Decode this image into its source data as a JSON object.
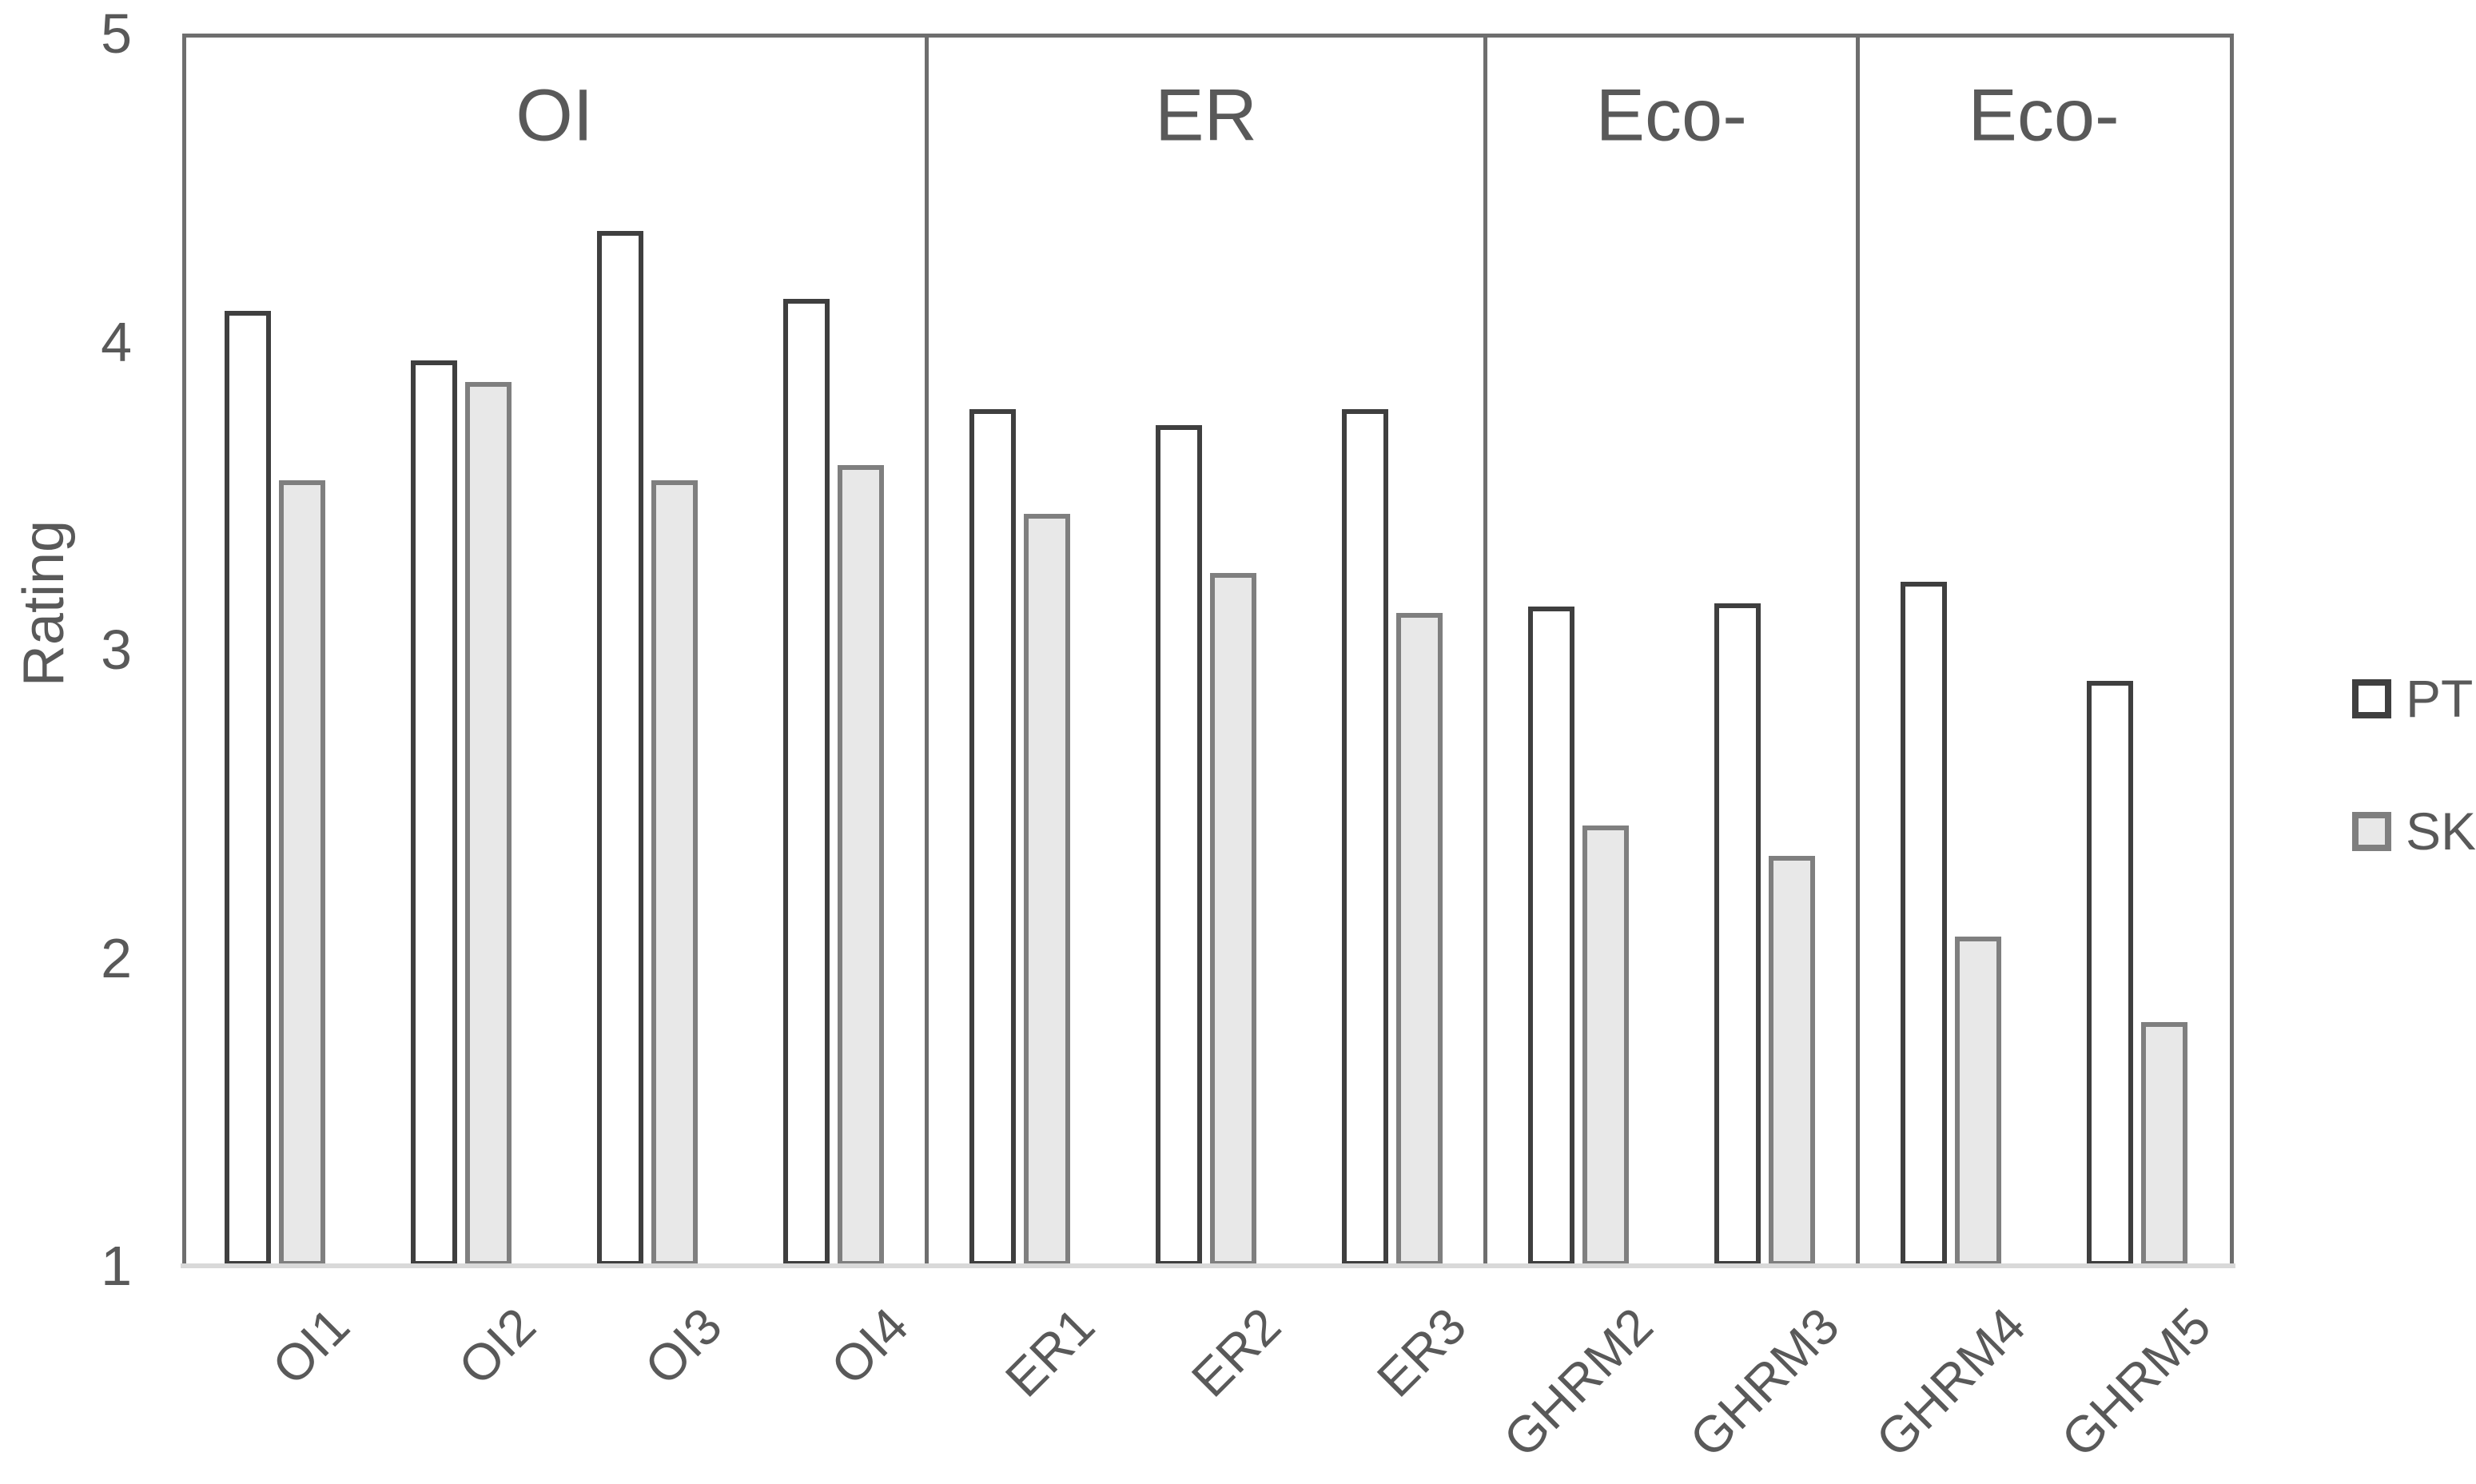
{
  "chart_data": {
    "type": "bar",
    "title": "",
    "ylabel": "Rating",
    "ylim": [
      1,
      5
    ],
    "yticks": [
      5,
      4,
      3,
      2,
      1
    ],
    "grid": false,
    "legend_position": "right",
    "categories": [
      "OI1",
      "OI2",
      "OI3",
      "OI4",
      "ER1",
      "ER2",
      "ER3",
      "GHRM2",
      "GHRM3",
      "GHRM4",
      "GHRM5"
    ],
    "sections": [
      {
        "label": "OI",
        "span": 4
      },
      {
        "label": "ER",
        "span": 3
      },
      {
        "label": "Eco-",
        "span": 2
      },
      {
        "label": "Eco-",
        "span": 2
      }
    ],
    "series": [
      {
        "name": "PT",
        "fill": "#ffffff",
        "border": "#3f3f3f",
        "values": [
          4.1,
          3.94,
          4.36,
          4.14,
          3.78,
          3.73,
          3.78,
          3.14,
          3.15,
          3.22,
          2.9
        ]
      },
      {
        "name": "SK",
        "fill": "#e8e8e8",
        "border": "#7f7f7f",
        "values": [
          3.55,
          3.87,
          3.55,
          3.6,
          3.44,
          3.25,
          3.12,
          2.43,
          2.33,
          2.07,
          1.79
        ]
      }
    ]
  },
  "colors": {
    "background": "#ffffff",
    "frame": "#6e6e6e",
    "baseline": "#d9d9d9",
    "text": "#595959"
  }
}
